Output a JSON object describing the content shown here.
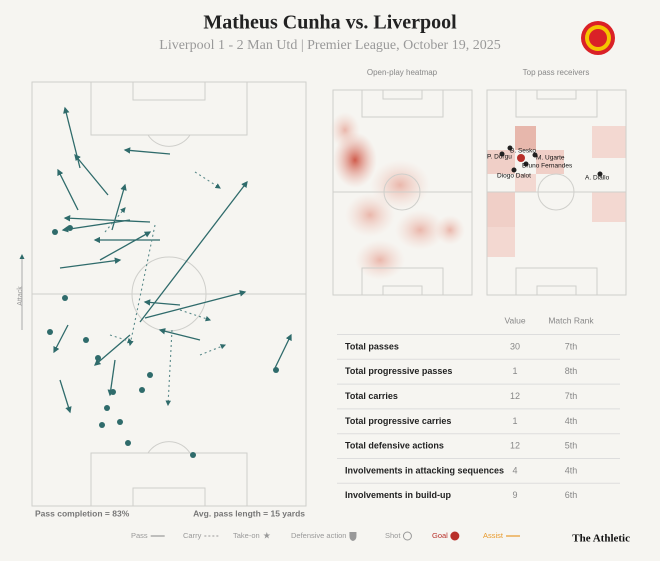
{
  "header": {
    "title": "Matheus Cunha vs. Liverpool",
    "subtitle": "Liverpool 1 - 2 Man Utd | Premier League, October 19, 2025"
  },
  "pitch": {
    "attack_label": "Attack",
    "pass_completion": "Pass completion = 83%",
    "avg_pass_length": "Avg. pass length = 15 yards"
  },
  "heatmap": {
    "title": "Open-play heatmap"
  },
  "receivers": {
    "title": "Top pass receivers",
    "players": [
      "B. Sesko",
      "P. Dorgu",
      "M. Ugarte",
      "Bruno Fernandes",
      "Diogo Dalot",
      "A. Diallo"
    ]
  },
  "table": {
    "columns": [
      "Value",
      "Match Rank"
    ],
    "rows": [
      [
        "Total passes",
        30,
        "7th"
      ],
      [
        "Total progressive passes",
        1,
        "8th"
      ],
      [
        "Total carries",
        12,
        "7th"
      ],
      [
        "Total progressive carries",
        1,
        "4th"
      ],
      [
        "Total defensive actions",
        12,
        "5th"
      ],
      [
        "Involvements in attacking sequences",
        4,
        "4th"
      ],
      [
        "Involvements in build-up",
        9,
        "6th"
      ]
    ]
  },
  "legend": [
    "Pass",
    "Carry",
    "Take-on",
    "Defensive action",
    "Shot",
    "Goal",
    "Assist"
  ],
  "brand": "The Athletic"
}
